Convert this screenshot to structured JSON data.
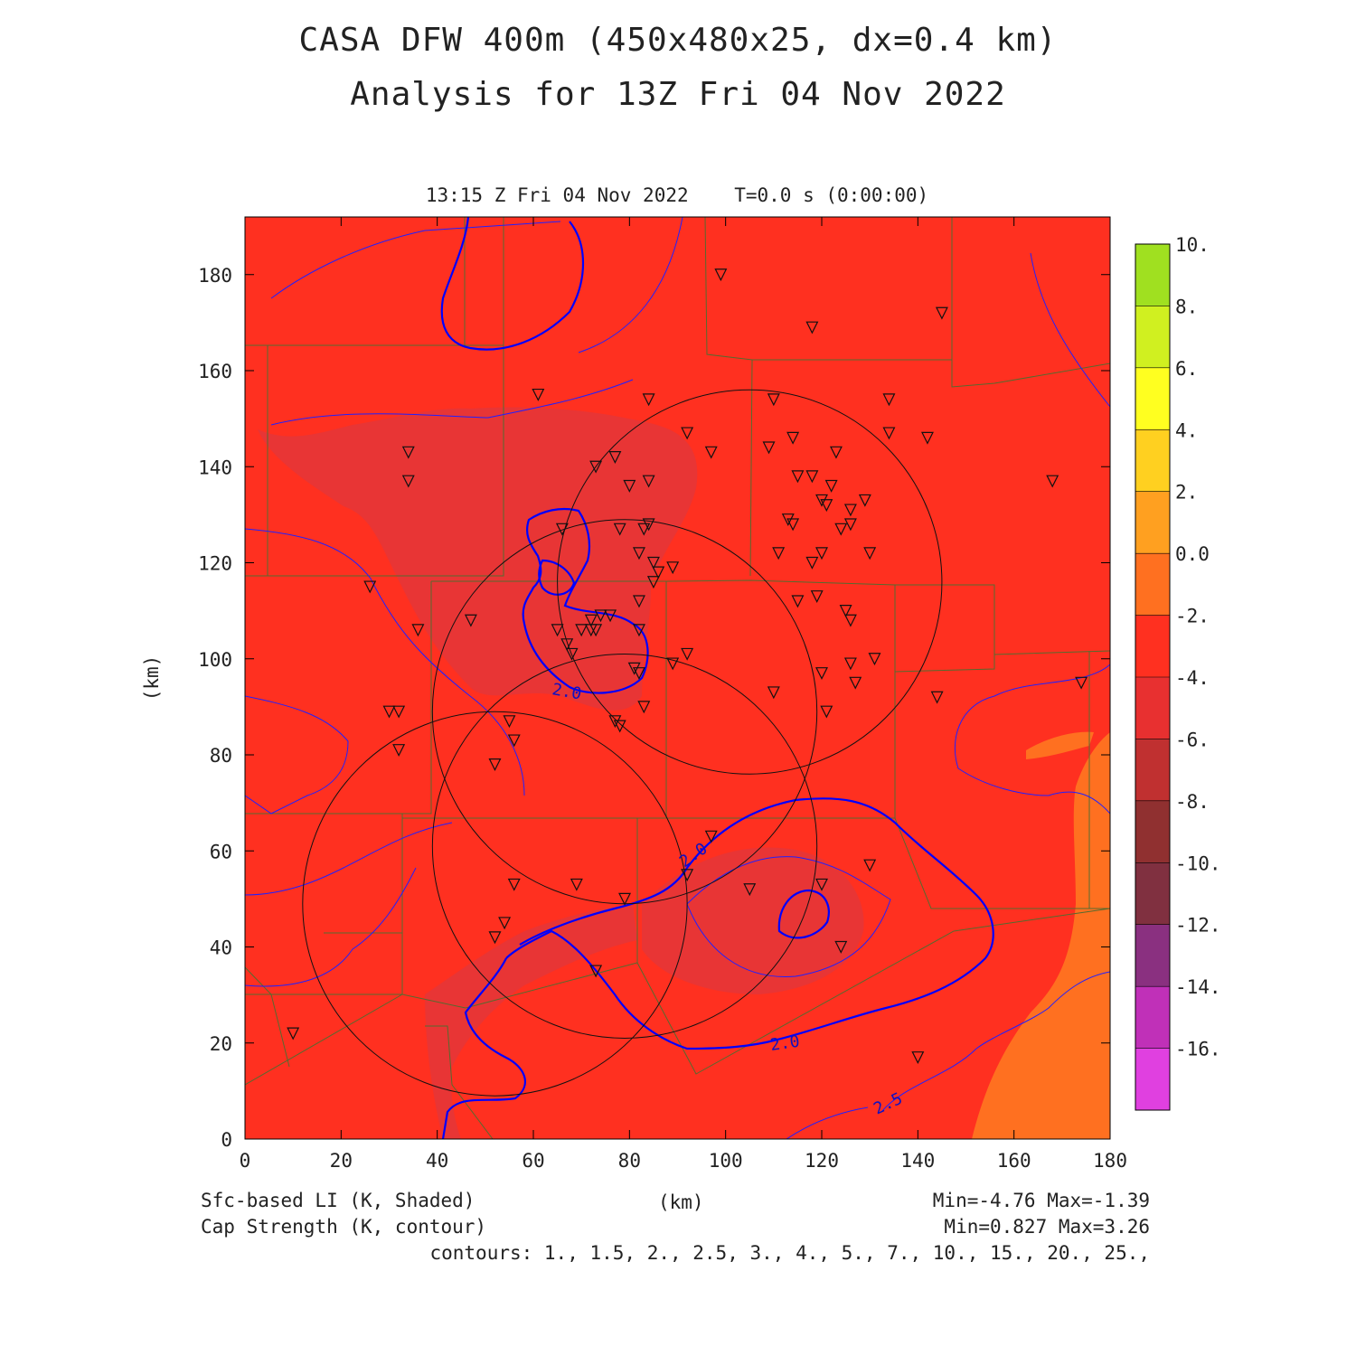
{
  "title": {
    "line1": "CASA DFW 400m (450x480x25, dx=0.4 km)",
    "line2": "Analysis for 13Z Fri 04 Nov 2022"
  },
  "valid_time": "13:15 Z Fri 04 Nov 2022    T=0.0 s (0:00:00)",
  "axes": {
    "x_label": "(km)",
    "y_label": "(km)",
    "x_range": [
      0,
      180
    ],
    "y_range": [
      0,
      192
    ],
    "x_ticks": [
      "0",
      "20",
      "40",
      "60",
      "80",
      "100",
      "120",
      "140",
      "160",
      "180"
    ],
    "y_ticks": [
      "0",
      "20",
      "40",
      "60",
      "80",
      "100",
      "120",
      "140",
      "160",
      "180"
    ]
  },
  "colorbar": {
    "labels": [
      "10.",
      "8.",
      "6.",
      "4.",
      "2.",
      "0.0",
      "-2.",
      "-4.",
      "-6.",
      "-8.",
      "-10.",
      "-12.",
      "-14.",
      "-16."
    ],
    "colors_top_to_bottom": [
      "#a0e020",
      "#d0f020",
      "#ffff20",
      "#ffd020",
      "#ffa020",
      "#ff7020",
      "#ff3020",
      "#e83030",
      "#c03030",
      "#903030",
      "#803040",
      "#8a3080",
      "#c030b8",
      "#e040e0"
    ]
  },
  "field_colors": {
    "background": "#ff3020",
    "minus4_region": "#e83535",
    "zero_region": "#ff7020",
    "contour": "#0000ff",
    "county_lines": "#556b2f",
    "radar_rings": "#000000"
  },
  "contour_labels": [
    "2.0",
    "2.0",
    "2.0",
    "2.5"
  ],
  "radar_rings_km": [
    {
      "cx": 105,
      "cy": 116,
      "r": 40
    },
    {
      "cx": 79,
      "cy": 89,
      "r": 40
    },
    {
      "cx": 79,
      "cy": 61,
      "r": 40
    },
    {
      "cx": 52,
      "cy": 49,
      "r": 40
    }
  ],
  "stations_km": [
    [
      99,
      180
    ],
    [
      118,
      169
    ],
    [
      145,
      172
    ],
    [
      61,
      155
    ],
    [
      84,
      154
    ],
    [
      110,
      154
    ],
    [
      134,
      154
    ],
    [
      34,
      143
    ],
    [
      34,
      137
    ],
    [
      77,
      142
    ],
    [
      73,
      140
    ],
    [
      84,
      137
    ],
    [
      80,
      136
    ],
    [
      92,
      147
    ],
    [
      97,
      143
    ],
    [
      109,
      144
    ],
    [
      114,
      146
    ],
    [
      123,
      143
    ],
    [
      134,
      147
    ],
    [
      142,
      146
    ],
    [
      168,
      137
    ],
    [
      115,
      138
    ],
    [
      118,
      138
    ],
    [
      120,
      133
    ],
    [
      122,
      136
    ],
    [
      121,
      132
    ],
    [
      126,
      131
    ],
    [
      129,
      133
    ],
    [
      126,
      128
    ],
    [
      113,
      129
    ],
    [
      114,
      128
    ],
    [
      124,
      127
    ],
    [
      120,
      122
    ],
    [
      111,
      122
    ],
    [
      118,
      120
    ],
    [
      130,
      122
    ],
    [
      66,
      127
    ],
    [
      78,
      127
    ],
    [
      84,
      128
    ],
    [
      82,
      122
    ],
    [
      85,
      120
    ],
    [
      83,
      127
    ],
    [
      86,
      118
    ],
    [
      89,
      119
    ],
    [
      85,
      116
    ],
    [
      82,
      112
    ],
    [
      72,
      106
    ],
    [
      65,
      106
    ],
    [
      67,
      103
    ],
    [
      70,
      106
    ],
    [
      73,
      106
    ],
    [
      68,
      101
    ],
    [
      82,
      106
    ],
    [
      81,
      98
    ],
    [
      82,
      97
    ],
    [
      92,
      101
    ],
    [
      89,
      99
    ],
    [
      74,
      109
    ],
    [
      26,
      115
    ],
    [
      36,
      106
    ],
    [
      47,
      108
    ],
    [
      72,
      108
    ],
    [
      76,
      109
    ],
    [
      115,
      112
    ],
    [
      119,
      113
    ],
    [
      125,
      110
    ],
    [
      126,
      108
    ],
    [
      120,
      97
    ],
    [
      126,
      99
    ],
    [
      127,
      95
    ],
    [
      131,
      100
    ],
    [
      144,
      92
    ],
    [
      174,
      95
    ],
    [
      110,
      93
    ],
    [
      121,
      89
    ],
    [
      30,
      89
    ],
    [
      32,
      89
    ],
    [
      32,
      81
    ],
    [
      55,
      87
    ],
    [
      56,
      83
    ],
    [
      52,
      78
    ],
    [
      77,
      87
    ],
    [
      78,
      86
    ],
    [
      83,
      90
    ],
    [
      97,
      63
    ],
    [
      92,
      55
    ],
    [
      56,
      53
    ],
    [
      69,
      53
    ],
    [
      79,
      50
    ],
    [
      105,
      52
    ],
    [
      120,
      53
    ],
    [
      130,
      57
    ],
    [
      52,
      42
    ],
    [
      54,
      45
    ],
    [
      124,
      40
    ],
    [
      73,
      35
    ],
    [
      10,
      22
    ],
    [
      140,
      17
    ]
  ],
  "footer": {
    "left1": "Sfc-based LI (K, Shaded)",
    "left2": "Cap Strength (K, contour)",
    "center": "(km)",
    "right1": "Min=-4.76 Max=-1.39",
    "right2": "Min=0.827 Max=3.26",
    "right3": "contours: 1., 1.5, 2., 2.5, 3., 4., 5., 7., 10., 15., 20., 25.,"
  }
}
